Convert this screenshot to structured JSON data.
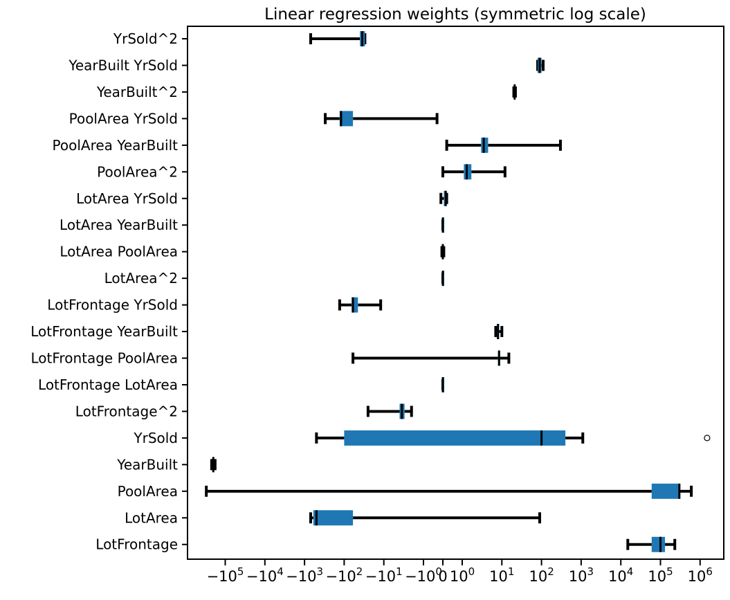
{
  "chart_data": {
    "type": "boxplot",
    "title": "Linear regression weights (symmetric log scale)",
    "xscale": "symlog",
    "xlabel": "",
    "ylabel": "",
    "grid": false,
    "xtick_values": [
      -100000,
      -10000,
      -1000,
      -100,
      -10,
      -1,
      0,
      1,
      10,
      100,
      1000,
      10000,
      100000,
      1000000
    ],
    "xtick_labels": [
      {
        "base": "−10",
        "exp": "5"
      },
      {
        "base": "−10",
        "exp": "4"
      },
      {
        "base": "−10",
        "exp": "3"
      },
      {
        "base": "−10",
        "exp": "2"
      },
      {
        "base": "−10",
        "exp": "1"
      },
      {
        "base": "−10",
        "exp": "0"
      },
      {
        "base": "0",
        "exp": ""
      },
      {
        "base": "10",
        "exp": "0"
      },
      {
        "base": "10",
        "exp": "1"
      },
      {
        "base": "10",
        "exp": "2"
      },
      {
        "base": "10",
        "exp": "3"
      },
      {
        "base": "10",
        "exp": "4"
      },
      {
        "base": "10",
        "exp": "5"
      },
      {
        "base": "10",
        "exp": "6"
      }
    ],
    "box_color": "#1f77b4",
    "whisker_color": "#000000",
    "features": [
      {
        "label": "YrSold^2",
        "whislo": -700,
        "q1": -40,
        "med": -35,
        "q3": -30,
        "whishi": -30
      },
      {
        "label": "YearBuilt YrSold",
        "whislo": 80,
        "q1": 80,
        "med": 90,
        "q3": 100,
        "whishi": 110
      },
      {
        "label": "YearBuilt^2",
        "whislo": 20,
        "q1": 20,
        "med": 21,
        "q3": 22,
        "whishi": 22
      },
      {
        "label": "PoolArea YrSold",
        "whislo": -300,
        "q1": -130,
        "med": -120,
        "q3": -60,
        "whishi": -0.3
      },
      {
        "label": "PoolArea YearBuilt",
        "whislo": 0.2,
        "q1": 3,
        "med": 3.5,
        "q3": 4.5,
        "whishi": 300
      },
      {
        "label": "PoolArea^2",
        "whislo": 0,
        "q1": 1.1,
        "med": 1.3,
        "q3": 1.7,
        "whishi": 12
      },
      {
        "label": "LotArea YrSold",
        "whislo": -0.1,
        "q1": 0.05,
        "med": 0.15,
        "q3": 0.2,
        "whishi": 0.2
      },
      {
        "label": "LotArea YearBuilt",
        "whislo": 0,
        "q1": 0,
        "med": 0,
        "q3": 0,
        "whishi": 0
      },
      {
        "label": "LotArea PoolArea",
        "whislo": -0.05,
        "q1": -0.02,
        "med": 0,
        "q3": 0.02,
        "whishi": 0.05
      },
      {
        "label": "LotArea^2",
        "whislo": 0,
        "q1": 0,
        "med": 0,
        "q3": 0,
        "whishi": 0
      },
      {
        "label": "LotFrontage YrSold",
        "whislo": -130,
        "q1": -65,
        "med": -60,
        "q3": -45,
        "whishi": -12
      },
      {
        "label": "LotFrontage YearBuilt",
        "whislo": 7,
        "q1": 7.5,
        "med": 8,
        "q3": 8.5,
        "whishi": 10
      },
      {
        "label": "LotFrontage PoolArea",
        "whislo": -60,
        "q1": 8,
        "med": 8.5,
        "q3": 9,
        "whishi": 15
      },
      {
        "label": "LotFrontage LotArea",
        "whislo": 0,
        "q1": 0,
        "med": 0,
        "q3": 0,
        "whishi": 0
      },
      {
        "label": "LotFrontage^2",
        "whislo": -25,
        "q1": -4,
        "med": -3.5,
        "q3": -3,
        "whishi": -2
      },
      {
        "label": "YrSold",
        "whislo": -500,
        "q1": -100,
        "med": 100,
        "q3": 400,
        "whishi": 1100,
        "fliers": [
          1500000
        ]
      },
      {
        "label": "YearBuilt",
        "whislo": -220000,
        "q1": -210000,
        "med": -200000,
        "q3": -190000,
        "whishi": -180000
      },
      {
        "label": "PoolArea",
        "whislo": -300000,
        "q1": 60000,
        "med": 300000,
        "q3": 310000,
        "whishi": 600000
      },
      {
        "label": "LotArea",
        "whislo": -700,
        "q1": -600,
        "med": -500,
        "q3": -60,
        "whishi": 90
      },
      {
        "label": "LotFrontage",
        "whislo": 15000,
        "q1": 60000,
        "med": 100000,
        "q3": 130000,
        "whishi": 230000
      }
    ]
  }
}
